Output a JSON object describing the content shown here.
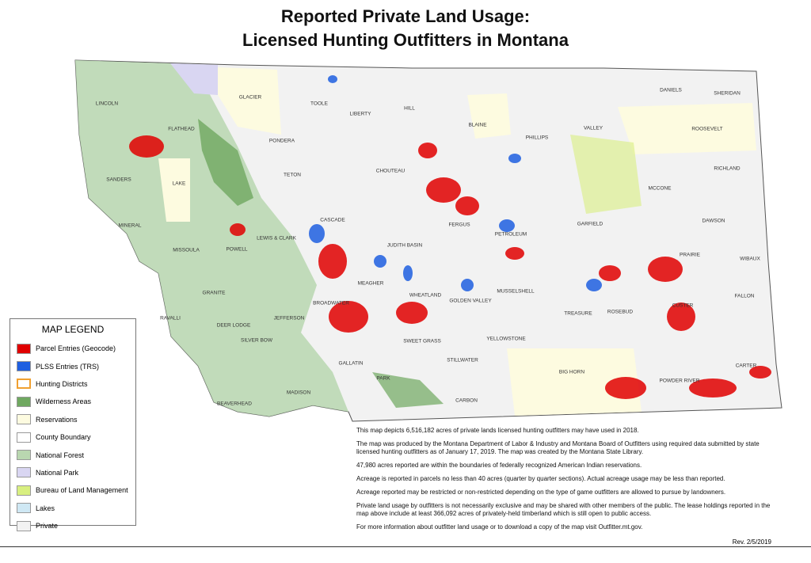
{
  "title": [
    "Reported Private Land Usage:",
    "Licensed Hunting Outfitters in Montana"
  ],
  "counties": [
    "GLACIER",
    "TOOLE",
    "LIBERTY",
    "HILL",
    "BLAINE",
    "PHILLIPS",
    "VALLEY",
    "DANIELS",
    "SHERIDAN",
    "ROOSEVELT",
    "LINCOLN",
    "FLATHEAD",
    "PONDERA",
    "TETON",
    "CHOUTEAU",
    "RICHLAND",
    "MCCONE",
    "SANDERS",
    "LAKE",
    "CASCADE",
    "FERGUS",
    "PETROLEUM",
    "GARFIELD",
    "DAWSON",
    "MINERAL",
    "LEWIS & CLARK",
    "JUDITH BASIN",
    "MISSOULA",
    "POWELL",
    "PRAIRIE",
    "WIBAUX",
    "MEAGHER",
    "WHEATLAND",
    "MUSSELSHELL",
    "GOLDEN VALLEY",
    "GRANITE",
    "BROADWATER",
    "CUSTER",
    "FALLON",
    "TREASURE",
    "ROSEBUD",
    "RAVALLI",
    "JEFFERSON",
    "DEER LODGE",
    "SILVER BOW",
    "SWEET GRASS",
    "YELLOWSTONE",
    "STILLWATER",
    "GALLATIN",
    "CARTER",
    "BIG HORN",
    "PARK",
    "POWDER RIVER",
    "MADISON",
    "BEAVERHEAD",
    "CARBON"
  ],
  "legend": {
    "title": "MAP LEGEND",
    "items": [
      {
        "label": "Parcel Entries (Geocode)",
        "color": "#e00000"
      },
      {
        "label": "PLSS Entries (TRS)",
        "color": "#1f5fe0"
      },
      {
        "label": "Hunting Districts",
        "color": "#ffffff",
        "border": "#f0a030"
      },
      {
        "label": "Wilderness Areas",
        "color": "#6fa860"
      },
      {
        "label": "Reservations",
        "color": "#fdfbe0"
      },
      {
        "label": "County Boundary",
        "color": "#ffffff"
      },
      {
        "label": "National Forest",
        "color": "#b9d7b0"
      },
      {
        "label": "National Park",
        "color": "#d9d6f2"
      },
      {
        "label": "Bureau of Land Management",
        "color": "#d8ef80"
      },
      {
        "label": "Lakes",
        "color": "#cfe8f4"
      },
      {
        "label": "Private",
        "color": "#f2f2f2"
      }
    ]
  },
  "notes": [
    "This map depicts 6,516,182 acres of private lands licensed hunting outfitters may have used in 2018.",
    "The map was produced by the Montana Department of Labor & Industry and Montana Board of Outfitters using required data submitted by state licensed hunting outfitters as of January 17, 2019. The map was created by the Montana State Library.",
    "47,980 acres reported are within the boundaries of federally recognized American Indian reservations.",
    "Acreage is reported in parcels no less than 40 acres (quarter by quarter sections). Actual acreage usage may be less than reported.",
    "Acreage reported may be restricted or non-restricted depending on the type of game outfitters are allowed to pursue by landowners.",
    "Private land usage by outfitters is not necessarily exclusive and may be shared with other members of the public. The lease holdings reported in the map above include at least 366,092 acres of privately-held timberland which is still open to public access.",
    "For more information about outfitter land usage or to download a copy of the map visit Outfitter.mt.gov."
  ],
  "revision": "Rev. 2/5/2019"
}
